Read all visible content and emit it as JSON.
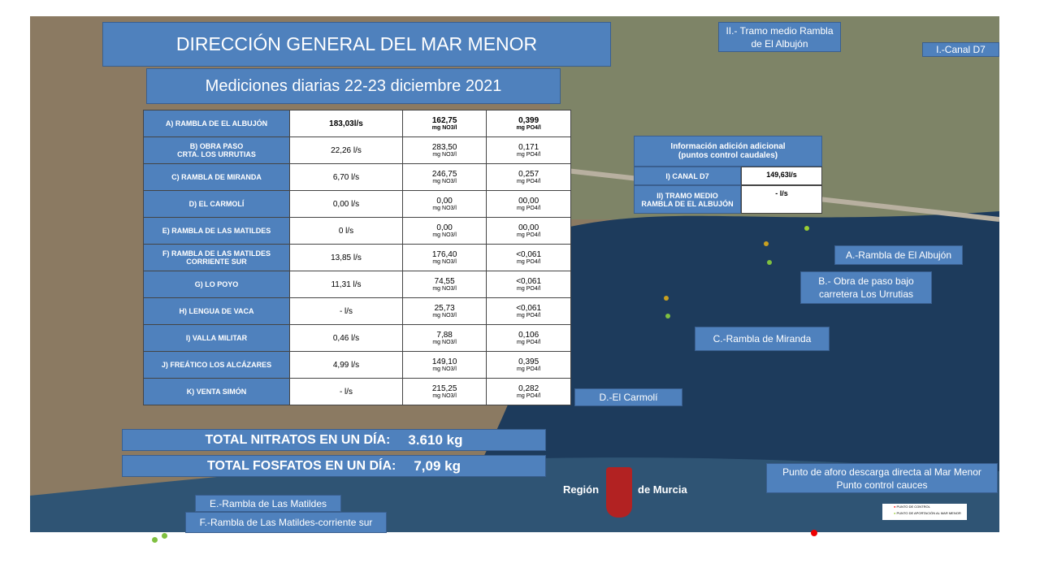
{
  "header": {
    "title": "DIRECCIÓN GENERAL DEL MAR MENOR",
    "subtitle": "Mediciones diarias 22-23 diciembre 2021"
  },
  "table": {
    "rows": [
      [
        "A) RAMBLA DE EL ALBUJÓN",
        "183,03l/s",
        [
          "162,75",
          "mg NO3/l"
        ],
        [
          "0,399",
          "mg PO4/l"
        ]
      ],
      [
        "B) OBRA PASO\nCRTA. LOS URRUTIAS",
        "22,26 l/s",
        [
          "283,50",
          "mg NO3/l"
        ],
        [
          "0,171",
          "mg PO4/l"
        ]
      ],
      [
        "C) RAMBLA DE MIRANDA",
        "6,70  l/s",
        [
          "246,75",
          "mg NO3/l"
        ],
        [
          "0,257",
          "mg PO4/l"
        ]
      ],
      [
        "D) EL CARMOLÍ",
        "0,00   l/s",
        [
          "0,00",
          "mg NO3/l"
        ],
        [
          "00,00",
          "mg PO4/l"
        ]
      ],
      [
        "E) RAMBLA DE LAS MATILDES",
        "0  l/s",
        [
          "0,00",
          "mg NO3/l"
        ],
        [
          "00,00",
          "mg PO4/l"
        ]
      ],
      [
        "F) RAMBLA DE LAS MATILDES\nCORRIENTE SUR",
        "13,85 l/s",
        [
          "176,40",
          "mg NO3/l"
        ],
        [
          "<0,061",
          "mg PO4/l"
        ]
      ],
      [
        "G) LO POYO",
        "11,31 l/s",
        [
          "74,55",
          "mg NO3/l"
        ],
        [
          "<0,061",
          "mg PO4/l"
        ]
      ],
      [
        "H) LENGUA DE VACA",
        "- l/s",
        [
          "25,73",
          "mg NO3/l"
        ],
        [
          "<0,061",
          "mg PO4/l"
        ]
      ],
      [
        "I) VALLA MILITAR",
        "0,46  l/s",
        [
          "7,88",
          "mg NO3/l"
        ],
        [
          "0,106",
          "mg PO4/l"
        ]
      ],
      [
        "J) FREÁTICO  LOS ALCÁZARES",
        "4,99 l/s",
        [
          "149,10",
          "mg NO3/l"
        ],
        [
          "0,395",
          "mg PO4/l"
        ]
      ],
      [
        "K) VENTA SIMÓN",
        "- l/s",
        [
          "215,25",
          "mg NO3/l"
        ],
        [
          "0,282",
          "mg PO4/l"
        ]
      ]
    ]
  },
  "totals": [
    [
      "TOTAL NITRATOS EN UN DÍA:",
      "3.610 kg"
    ],
    [
      "TOTAL FOSFATOS  EN UN DÍA:",
      "7,09 kg"
    ]
  ],
  "info": {
    "title": "Información  adición  adicional\n(puntos control  caudales)",
    "rows": [
      [
        "I) CANAL D7",
        "149,63l/s"
      ],
      [
        "II) TRAMO MEDIO\nRAMBLA DE EL ALBUJÓN",
        "- l/s"
      ]
    ]
  },
  "map_labels": [
    "II.- Tramo medio Rambla\nde El Albujón",
    "I.-Canal D7",
    "A.-Rambla de El Albujón",
    "B.- Obra de paso bajo\ncarretera Los Urrutias",
    "C.-Rambla de Miranda",
    "D.-El Carmolí",
    "E.-Rambla de Las Matildes",
    "F.-Rambla de Las Matildes-corriente sur"
  ],
  "legend": {
    "text": "Punto de aforo descarga directa al Mar Menor\nPunto control cauces",
    "items": [
      "PUNTO DE CONTROL",
      "PUNTO DE APORTACIÓN AL MAR MENOR"
    ]
  },
  "logo": [
    "Región",
    "de Murcia"
  ]
}
